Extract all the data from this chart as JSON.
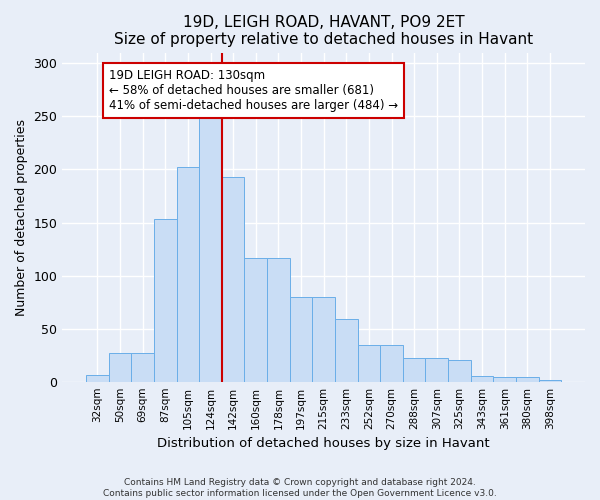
{
  "title1": "19D, LEIGH ROAD, HAVANT, PO9 2ET",
  "title2": "Size of property relative to detached houses in Havant",
  "xlabel": "Distribution of detached houses by size in Havant",
  "ylabel": "Number of detached properties",
  "bar_labels": [
    "32sqm",
    "50sqm",
    "69sqm",
    "87sqm",
    "105sqm",
    "124sqm",
    "142sqm",
    "160sqm",
    "178sqm",
    "197sqm",
    "215sqm",
    "233sqm",
    "252sqm",
    "270sqm",
    "288sqm",
    "307sqm",
    "325sqm",
    "343sqm",
    "361sqm",
    "380sqm",
    "398sqm"
  ],
  "bar_values": [
    6,
    27,
    27,
    153,
    202,
    250,
    193,
    117,
    117,
    80,
    80,
    59,
    35,
    35,
    22,
    22,
    20,
    5,
    4,
    4,
    2
  ],
  "bar_color": "#c9ddf5",
  "bar_edgecolor": "#6aaee8",
  "vline_color": "#cc0000",
  "annotation_text": "19D LEIGH ROAD: 130sqm\n← 58% of detached houses are smaller (681)\n41% of semi-detached houses are larger (484) →",
  "annotation_box_color": "#ffffff",
  "annotation_box_edgecolor": "#cc0000",
  "ylim": [
    0,
    310
  ],
  "yticks": [
    0,
    50,
    100,
    150,
    200,
    250,
    300
  ],
  "footer": "Contains HM Land Registry data © Crown copyright and database right 2024.\nContains public sector information licensed under the Open Government Licence v3.0.",
  "bg_color": "#e8eef8",
  "plot_bg_color": "#e8eef8",
  "grid_color": "#ffffff",
  "title1_fontsize": 11,
  "title2_fontsize": 10
}
